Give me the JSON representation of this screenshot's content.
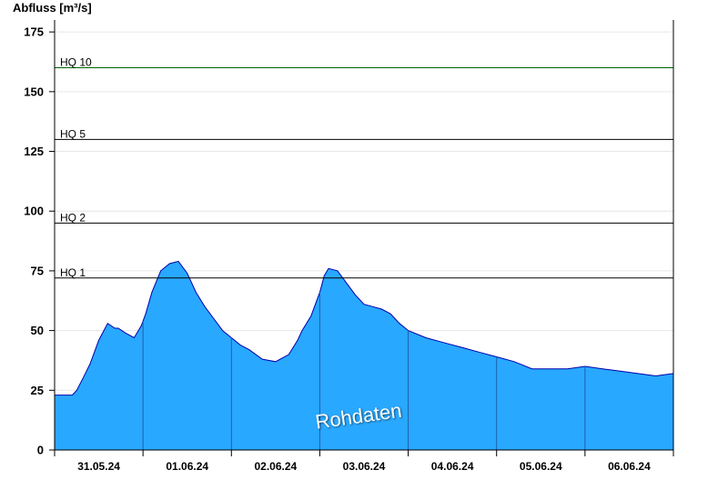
{
  "chart_data": {
    "type": "area",
    "ylabel": "Abfluss [m³/s]",
    "ylim": [
      0,
      180
    ],
    "yticks": [
      0,
      25,
      50,
      75,
      100,
      125,
      150,
      175
    ],
    "xlim_days": [
      0,
      7
    ],
    "day_labels": [
      "31.05.24",
      "01.06.24",
      "02.06.24",
      "03.06.24",
      "04.06.24",
      "05.06.24",
      "06.06.24"
    ],
    "grid": true,
    "fill_color": "#29a8ff",
    "line_color": "#0000aa",
    "thresholds": [
      {
        "name": "HQ 1",
        "value": 72,
        "color": "#000000"
      },
      {
        "name": "HQ 2",
        "value": 95,
        "color": "#000000"
      },
      {
        "name": "HQ 5",
        "value": 130,
        "color": "#000000"
      },
      {
        "name": "HQ 10",
        "value": 160,
        "color": "#006400"
      }
    ],
    "annotation": "Rohdaten",
    "series": [
      {
        "x": [
          0,
          0.2,
          0.25,
          0.32,
          0.4,
          0.5,
          0.6,
          0.68,
          0.72,
          0.8,
          0.9,
          0.98,
          1.03,
          1.1,
          1.2,
          1.3,
          1.4,
          1.5,
          1.55,
          1.6,
          1.7,
          1.8,
          1.9,
          2.0,
          2.1,
          2.2,
          2.35,
          2.5,
          2.65,
          2.75,
          2.8,
          2.9,
          3.0,
          3.05,
          3.1,
          3.2,
          3.3,
          3.4,
          3.5,
          3.6,
          3.7,
          3.8,
          3.9,
          4.0,
          4.2,
          4.4,
          4.6,
          4.8,
          5.0,
          5.2,
          5.4,
          5.6,
          5.8,
          6.0,
          6.2,
          6.4,
          6.6,
          6.8,
          7.0
        ],
        "y": [
          23,
          23,
          25,
          30,
          36,
          46,
          53,
          51,
          51,
          49,
          47,
          52,
          57,
          66,
          75,
          78,
          79,
          74,
          70,
          66,
          60,
          55,
          50,
          47,
          44,
          42,
          38,
          37,
          40,
          46,
          50,
          56,
          66,
          73,
          76,
          75,
          70,
          65,
          61,
          60,
          59,
          57,
          53,
          50,
          47,
          45,
          43,
          41,
          39,
          37,
          34,
          34,
          34,
          35,
          34,
          33,
          32,
          31,
          32
        ]
      }
    ]
  }
}
